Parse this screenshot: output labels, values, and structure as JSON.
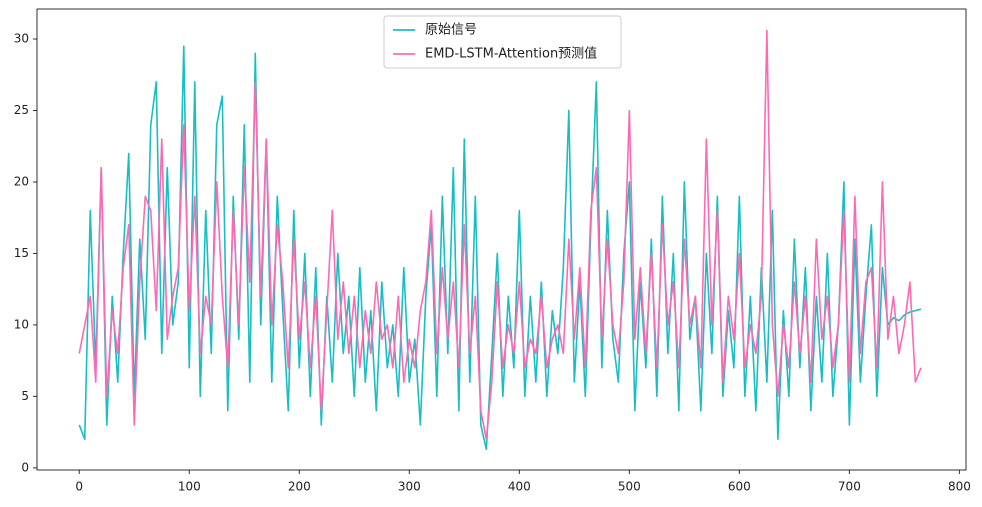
{
  "chart_data": {
    "type": "line",
    "x": [
      0,
      5,
      10,
      15,
      20,
      25,
      30,
      35,
      40,
      45,
      50,
      55,
      60,
      65,
      70,
      75,
      80,
      85,
      90,
      95,
      100,
      105,
      110,
      115,
      120,
      125,
      130,
      135,
      140,
      145,
      150,
      155,
      160,
      165,
      170,
      175,
      180,
      185,
      190,
      195,
      200,
      205,
      210,
      215,
      220,
      225,
      230,
      235,
      240,
      245,
      250,
      255,
      260,
      265,
      270,
      275,
      280,
      285,
      290,
      295,
      300,
      305,
      310,
      315,
      320,
      325,
      330,
      335,
      340,
      345,
      350,
      355,
      360,
      365,
      370,
      375,
      380,
      385,
      390,
      395,
      400,
      405,
      410,
      415,
      420,
      425,
      430,
      435,
      440,
      445,
      450,
      455,
      460,
      465,
      470,
      475,
      480,
      485,
      490,
      495,
      500,
      505,
      510,
      515,
      520,
      525,
      530,
      535,
      540,
      545,
      550,
      555,
      560,
      565,
      570,
      575,
      580,
      585,
      590,
      595,
      600,
      605,
      610,
      615,
      620,
      625,
      630,
      635,
      640,
      645,
      650,
      655,
      660,
      665,
      670,
      675,
      680,
      685,
      690,
      695,
      700,
      705,
      710,
      715,
      720,
      725,
      730,
      735,
      740,
      745,
      750,
      755,
      760,
      765
    ],
    "series": [
      {
        "name": "原始信号",
        "color": "#17bfc4",
        "values": [
          3,
          2,
          18,
          7,
          21,
          3,
          12,
          6,
          15,
          22,
          5,
          16,
          9,
          24,
          27,
          8,
          21,
          10,
          13,
          29.5,
          7,
          27,
          5,
          18,
          8,
          24,
          26,
          4,
          19,
          9,
          24,
          6,
          29,
          10,
          23,
          6,
          19,
          11,
          4,
          18,
          7,
          15,
          5,
          14,
          3,
          12,
          6,
          15,
          8,
          12,
          5,
          14,
          6,
          11,
          4,
          13,
          7,
          10,
          5,
          14,
          6,
          9,
          3,
          12,
          17,
          5,
          19,
          8,
          21,
          4,
          23,
          6,
          19,
          3,
          1.3,
          8,
          15,
          5,
          12,
          7,
          18,
          5,
          12,
          6,
          13,
          5,
          11,
          8,
          14,
          25,
          6,
          13,
          5,
          17,
          27,
          7,
          18,
          9,
          6,
          15,
          20,
          4,
          13,
          7,
          16,
          5,
          19,
          8,
          15,
          4,
          20,
          9,
          12,
          4,
          15,
          8,
          19,
          5,
          11,
          7,
          19,
          5,
          12,
          4,
          14,
          6,
          18,
          2,
          11,
          5,
          16,
          7,
          14,
          4,
          12,
          6,
          15,
          5,
          10,
          20,
          3,
          16,
          6,
          12,
          17,
          5,
          14,
          10,
          10.5,
          10.3,
          10.7,
          10.9,
          11,
          11.1
        ]
      },
      {
        "name": "EMD-LSTM-Attention预测值",
        "color": "#ff69b4",
        "values": [
          8,
          10,
          12,
          6,
          21,
          5,
          11,
          8,
          14,
          17,
          3,
          13,
          19,
          18,
          11,
          23,
          9,
          12,
          14,
          24,
          11,
          19,
          8,
          12,
          10,
          20,
          12,
          7,
          18,
          10,
          21,
          13,
          27,
          12,
          23,
          10,
          17,
          13,
          7,
          16,
          9,
          13,
          7,
          12,
          4,
          11,
          18,
          9,
          13,
          8,
          12,
          7,
          11,
          8,
          13,
          9,
          10,
          7,
          12,
          6,
          9,
          7,
          11,
          13,
          18,
          8,
          14,
          9,
          13,
          7,
          17,
          8,
          12,
          4,
          2,
          6,
          13,
          7,
          10,
          8,
          13,
          7,
          9,
          8,
          12,
          7,
          9,
          10,
          8,
          16,
          9,
          14,
          7,
          18,
          21,
          9,
          16,
          10,
          8,
          13,
          25,
          9,
          14,
          8,
          15,
          7,
          17,
          10,
          13,
          7,
          16,
          10,
          12,
          7,
          23,
          10,
          18,
          6,
          12,
          9,
          15,
          7,
          10,
          8,
          12,
          30.6,
          10,
          5,
          10,
          7,
          13,
          8,
          12,
          6,
          16,
          9,
          12,
          7,
          10,
          18,
          6,
          19,
          8,
          13,
          14,
          7,
          20,
          9,
          12,
          8,
          10,
          13,
          6,
          7
        ]
      }
    ],
    "xlim": [
      -38.4,
      806
    ],
    "ylim": [
      -0.15,
      32.1
    ],
    "xticks": [
      0,
      100,
      200,
      300,
      400,
      500,
      600,
      700,
      800
    ],
    "yticks": [
      0,
      5,
      10,
      15,
      20,
      25,
      30
    ],
    "grid": false,
    "legend": "upper center"
  }
}
